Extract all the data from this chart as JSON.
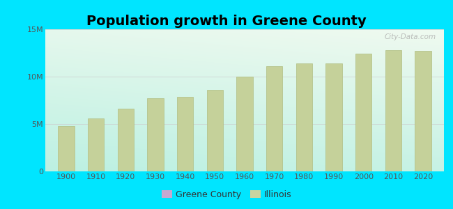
{
  "title": "Population growth in Greene County",
  "years": [
    1900,
    1910,
    1920,
    1930,
    1940,
    1950,
    1960,
    1970,
    1980,
    1990,
    2000,
    2010,
    2020
  ],
  "illinois_values": [
    4800000,
    5600000,
    6600000,
    7700000,
    7900000,
    8600000,
    10000000,
    11100000,
    11400000,
    11400000,
    12400000,
    12800000,
    12700000
  ],
  "bar_color": "#c5d19a",
  "bar_edge_color": "#b0be82",
  "background_outer": "#00e5ff",
  "bg_top_left": "#e8f4e8",
  "bg_top_right": "#f5faf5",
  "bg_bottom_left": "#aae8d8",
  "bg_bottom_right": "#c8f0e0",
  "ylim": [
    0,
    15000000
  ],
  "yticks": [
    0,
    5000000,
    10000000,
    15000000
  ],
  "ytick_labels": [
    "0",
    "5M",
    "10M",
    "15M"
  ],
  "watermark": "City-Data.com",
  "legend_greene_color": "#c8a8d0",
  "legend_illinois_color": "#c8d4a0",
  "title_fontsize": 14,
  "tick_fontsize": 8,
  "legend_fontsize": 9
}
